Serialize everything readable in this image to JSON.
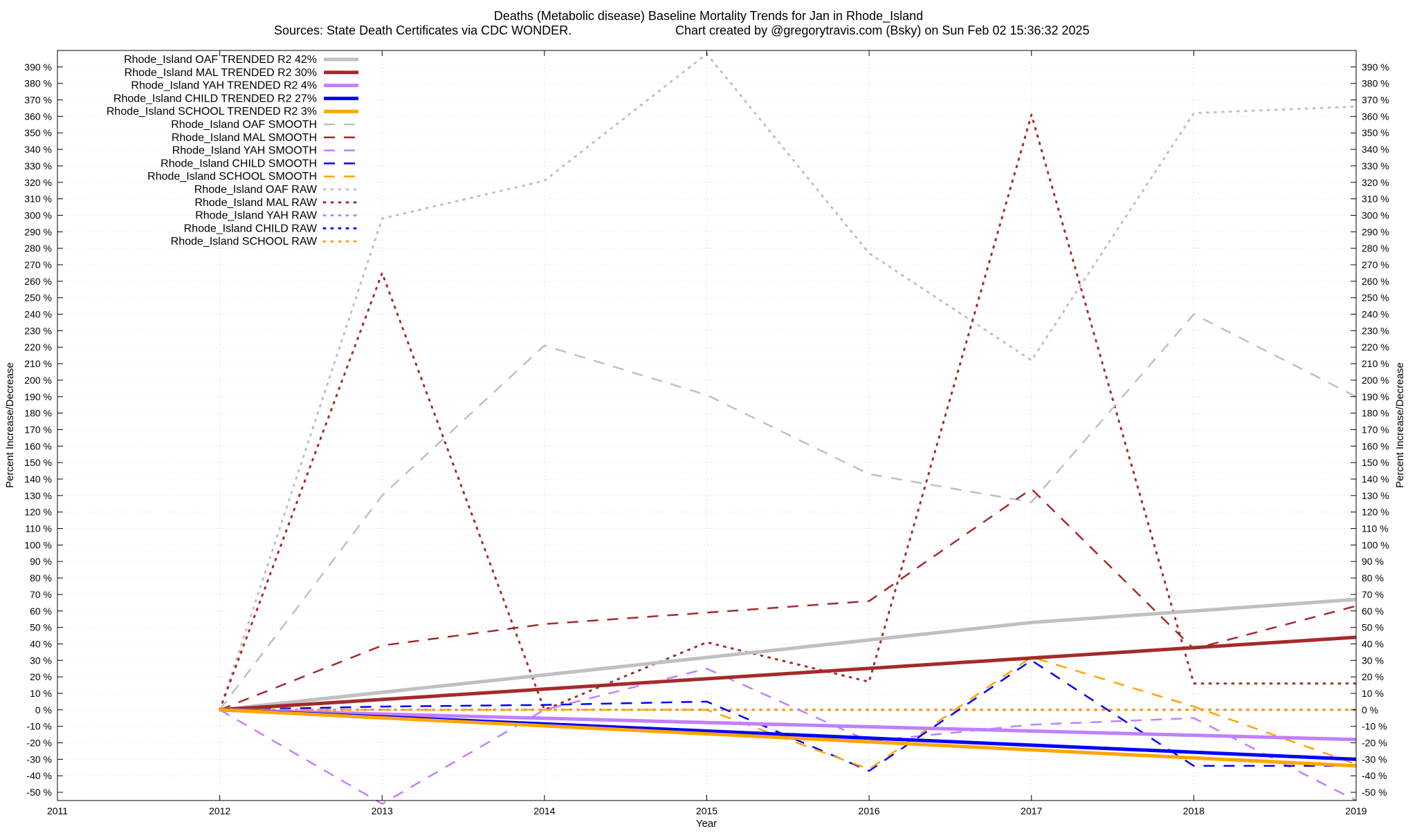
{
  "chart_data": {
    "type": "line",
    "title": "Deaths (Metabolic disease)  Baseline Mortality Trends for Jan in Rhode_Island",
    "subtitle_left": "Sources: State Death Certificates via CDC WONDER.",
    "subtitle_right": "Chart created by @gregorytravis.com (Bsky) on Sun Feb 02 15:36:32 2025",
    "xlabel": "Year",
    "ylabel_left": "Percent Increase/Decrease",
    "ylabel_right": "Percent Increase/Decrease",
    "xlim": [
      2011,
      2019
    ],
    "ylim": [
      -55,
      400
    ],
    "x_ticks": [
      "2011",
      "2012",
      "2013",
      "2014",
      "2015",
      "2016",
      "2017",
      "2018",
      "2019"
    ],
    "y_ticks": [
      -50,
      -40,
      -30,
      -20,
      -10,
      0,
      10,
      20,
      30,
      40,
      50,
      60,
      70,
      80,
      90,
      100,
      110,
      120,
      130,
      140,
      150,
      160,
      170,
      180,
      190,
      200,
      210,
      220,
      230,
      240,
      250,
      260,
      270,
      280,
      290,
      300,
      310,
      320,
      330,
      340,
      350,
      360,
      370,
      380,
      390
    ],
    "y_tick_suffix": " %",
    "grid": true,
    "legend_position": "top-left",
    "series": [
      {
        "name": "Rhode_Island OAF TRENDED R2  42%",
        "color": "#c0c0c0",
        "style": "solid",
        "x": [
          2012,
          2017,
          2019
        ],
        "y": [
          0,
          53,
          67
        ]
      },
      {
        "name": "Rhode_Island MAL TRENDED R2  30%",
        "color": "#a52a2a",
        "style": "solid",
        "x": [
          2012,
          2019
        ],
        "y": [
          0,
          44
        ]
      },
      {
        "name": "Rhode_Island YAH TRENDED R2   4%",
        "color": "#c080ff",
        "style": "solid",
        "x": [
          2012,
          2019
        ],
        "y": [
          0,
          -18
        ]
      },
      {
        "name": "Rhode_Island CHILD TRENDED R2  27%",
        "color": "#0000ff",
        "style": "solid",
        "x": [
          2012,
          2019
        ],
        "y": [
          0,
          -30
        ]
      },
      {
        "name": "Rhode_Island SCHOOL TRENDED R2   3%",
        "color": "#ffa500",
        "style": "solid",
        "x": [
          2012,
          2019
        ],
        "y": [
          0,
          -34
        ]
      },
      {
        "name": "Rhode_Island OAF SMOOTH",
        "color": "#c0c0c0",
        "style": "dashed",
        "x": [
          2012,
          2013,
          2014,
          2015,
          2016,
          2017,
          2018,
          2019
        ],
        "y": [
          0,
          130,
          221,
          191,
          143,
          126,
          240,
          190
        ]
      },
      {
        "name": "Rhode_Island MAL SMOOTH",
        "color": "#a52a2a",
        "style": "dashed",
        "x": [
          2012,
          2013,
          2014,
          2015,
          2016,
          2017,
          2018,
          2019
        ],
        "y": [
          0,
          39,
          52,
          59,
          66,
          134,
          37,
          63
        ]
      },
      {
        "name": "Rhode_Island YAH SMOOTH",
        "color": "#c080ff",
        "style": "dashed",
        "x": [
          2012,
          2013,
          2014,
          2015,
          2016,
          2017,
          2018,
          2019
        ],
        "y": [
          0,
          -57,
          0,
          25,
          -19,
          -9,
          -5,
          -55
        ]
      },
      {
        "name": "Rhode_Island CHILD SMOOTH",
        "color": "#0000ff",
        "style": "dashed",
        "x": [
          2012,
          2013,
          2014,
          2015,
          2016,
          2017,
          2018,
          2019
        ],
        "y": [
          0,
          2,
          3,
          5,
          -37,
          30,
          -34,
          -34
        ]
      },
      {
        "name": "Rhode_Island SCHOOL SMOOTH",
        "color": "#ffa500",
        "style": "dashed",
        "x": [
          2012,
          2013,
          2014,
          2015,
          2016,
          2017,
          2018,
          2019
        ],
        "y": [
          0,
          0,
          0,
          0,
          -36,
          32,
          2,
          -33
        ]
      },
      {
        "name": "Rhode_Island OAF RAW",
        "color": "#c0c0c0",
        "style": "dotted",
        "x": [
          2012,
          2013,
          2014,
          2015,
          2016,
          2017,
          2018,
          2019
        ],
        "y": [
          0,
          298,
          321,
          398,
          277,
          212,
          362,
          366
        ]
      },
      {
        "name": "Rhode_Island MAL RAW",
        "color": "#a52a2a",
        "style": "dotted",
        "x": [
          2012,
          2013,
          2014,
          2015,
          2016,
          2017,
          2018,
          2019
        ],
        "y": [
          0,
          265,
          0,
          41,
          17,
          361,
          16,
          16
        ]
      },
      {
        "name": "Rhode_Island YAH RAW",
        "color": "#c080ff",
        "style": "dotted",
        "x": [
          2012,
          2019
        ],
        "y": [
          0,
          0
        ]
      },
      {
        "name": "Rhode_Island CHILD RAW",
        "color": "#0000ff",
        "style": "dotted",
        "x": [
          2012,
          2019
        ],
        "y": [
          0,
          0
        ]
      },
      {
        "name": "Rhode_Island SCHOOL RAW",
        "color": "#ffa500",
        "style": "dotted",
        "x": [
          2012,
          2019
        ],
        "y": [
          0,
          0
        ]
      }
    ]
  }
}
